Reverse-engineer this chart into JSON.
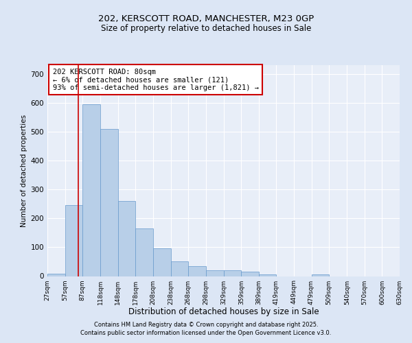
{
  "title1": "202, KERSCOTT ROAD, MANCHESTER, M23 0GP",
  "title2": "Size of property relative to detached houses in Sale",
  "xlabel": "Distribution of detached houses by size in Sale",
  "ylabel": "Number of detached properties",
  "bar_color": "#b8cfe8",
  "bar_edge_color": "#6699cc",
  "bar_left_edges": [
    27,
    57,
    87,
    118,
    148,
    178,
    208,
    238,
    268,
    298,
    329,
    359,
    389,
    419,
    449,
    479,
    509,
    540,
    570,
    600
  ],
  "bar_widths": [
    30,
    30,
    31,
    30,
    30,
    30,
    30,
    30,
    30,
    31,
    30,
    30,
    30,
    30,
    30,
    30,
    31,
    30,
    30,
    30
  ],
  "bar_heights": [
    8,
    245,
    595,
    510,
    260,
    165,
    95,
    50,
    35,
    20,
    20,
    15,
    5,
    0,
    0,
    5,
    0,
    0,
    0,
    0
  ],
  "tick_labels": [
    "27sqm",
    "57sqm",
    "87sqm",
    "118sqm",
    "148sqm",
    "178sqm",
    "208sqm",
    "238sqm",
    "268sqm",
    "298sqm",
    "329sqm",
    "359sqm",
    "389sqm",
    "419sqm",
    "449sqm",
    "479sqm",
    "509sqm",
    "540sqm",
    "570sqm",
    "600sqm",
    "630sqm"
  ],
  "ylim": [
    0,
    730
  ],
  "yticks": [
    0,
    100,
    200,
    300,
    400,
    500,
    600,
    700
  ],
  "red_line_x": 80,
  "annotation_text": "202 KERSCOTT ROAD: 80sqm\n← 6% of detached houses are smaller (121)\n93% of semi-detached houses are larger (1,821) →",
  "annotation_box_color": "#ffffff",
  "annotation_border_color": "#cc0000",
  "footer1": "Contains HM Land Registry data © Crown copyright and database right 2025.",
  "footer2": "Contains public sector information licensed under the Open Government Licence v3.0.",
  "bg_color": "#dce6f5",
  "plot_bg_color": "#e8eef8"
}
